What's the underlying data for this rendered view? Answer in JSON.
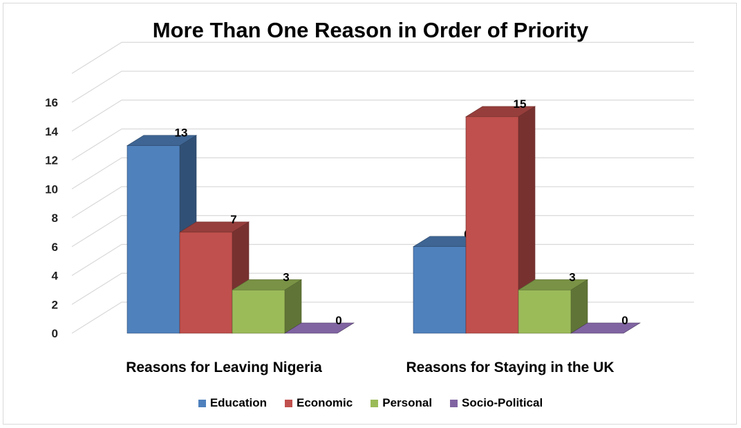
{
  "chart_data": {
    "type": "bar",
    "title": "More Than One Reason in Order of Priority",
    "categories": [
      "Reasons for Leaving Nigeria",
      "Reasons for Staying in the UK"
    ],
    "series": [
      {
        "name": "Education",
        "values": [
          13,
          6
        ],
        "color": "#4f81bd"
      },
      {
        "name": "Economic",
        "values": [
          7,
          15
        ],
        "color": "#c0504d"
      },
      {
        "name": "Personal",
        "values": [
          3,
          3
        ],
        "color": "#9bbb59"
      },
      {
        "name": "Socio-Political",
        "values": [
          0,
          0
        ],
        "color": "#8064a2"
      }
    ],
    "ylim": [
      0,
      16
    ],
    "yticks": [
      0,
      2,
      4,
      6,
      8,
      10,
      12,
      14,
      16
    ],
    "grid": true,
    "legend": "bottom",
    "style": "3d-clustered"
  }
}
